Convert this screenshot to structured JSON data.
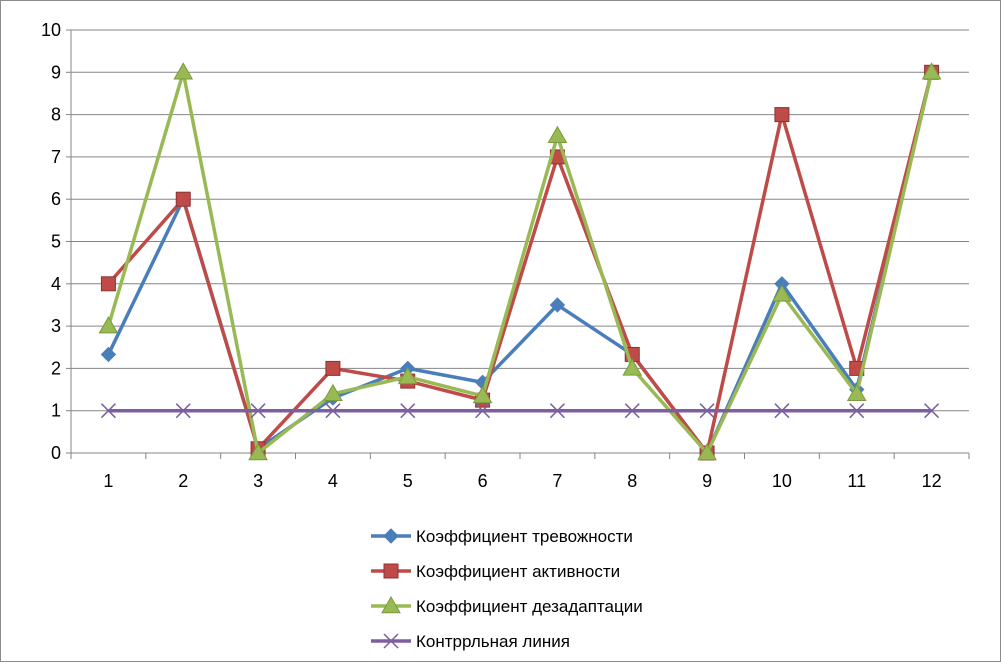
{
  "chart_data": {
    "type": "line",
    "title": "",
    "xlabel": "",
    "ylabel": "",
    "x": [
      "1",
      "2",
      "3",
      "4",
      "5",
      "6",
      "7",
      "8",
      "9",
      "10",
      "11",
      "12"
    ],
    "ylim": [
      0,
      10
    ],
    "yticks": [
      "0",
      "1",
      "2",
      "3",
      "4",
      "5",
      "6",
      "7",
      "8",
      "9",
      "10"
    ],
    "grid": true,
    "legend_position": "bottom",
    "series": [
      {
        "name": "Коэффициент тревожности",
        "color": "#4a7ebb",
        "marker": "diamond",
        "values": [
          2.33,
          6,
          0.1,
          1.3,
          2,
          1.67,
          3.5,
          2.33,
          0,
          4,
          1.5,
          9
        ]
      },
      {
        "name": "Коэффициент активности",
        "color": "#be4b48",
        "marker": "square",
        "values": [
          4,
          6,
          0.1,
          2,
          1.7,
          1.25,
          7,
          2.33,
          0,
          8,
          2,
          9
        ]
      },
      {
        "name": "Коэффициент дезадаптации",
        "color": "#98b954",
        "marker": "triangle",
        "values": [
          3,
          9,
          0,
          1.4,
          1.8,
          1.35,
          7.5,
          2,
          0,
          3.75,
          1.4,
          9
        ]
      },
      {
        "name": "Контррльная линия",
        "color": "#7d5fa0",
        "marker": "x",
        "values": [
          1,
          1,
          1,
          1,
          1,
          1,
          1,
          1,
          1,
          1,
          1,
          1
        ]
      }
    ]
  }
}
